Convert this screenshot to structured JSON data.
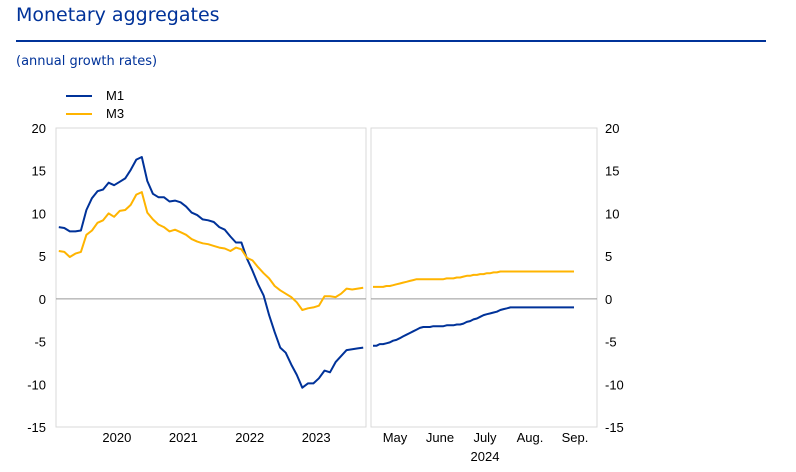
{
  "title": "Monetary aggregates",
  "subtitle": "(annual growth rates)",
  "chart_data": [
    {
      "type": "line",
      "panel": "left",
      "x_unit": "month",
      "x_tick_labels": [
        "2020",
        "2021",
        "2022",
        "2023"
      ],
      "ylim": [
        -15,
        20
      ],
      "y_ticks": [
        20,
        15,
        10,
        5,
        0,
        -5,
        -10,
        -15
      ],
      "x": [
        "2019-08",
        "2019-09",
        "2019-10",
        "2019-11",
        "2019-12",
        "2020-01",
        "2020-02",
        "2020-03",
        "2020-04",
        "2020-05",
        "2020-06",
        "2020-07",
        "2020-08",
        "2020-09",
        "2020-10",
        "2020-11",
        "2020-12",
        "2021-01",
        "2021-02",
        "2021-03",
        "2021-04",
        "2021-05",
        "2021-06",
        "2021-07",
        "2021-08",
        "2021-09",
        "2021-10",
        "2021-11",
        "2021-12",
        "2022-01",
        "2022-02",
        "2022-03",
        "2022-04",
        "2022-05",
        "2022-06",
        "2022-07",
        "2022-08",
        "2022-09",
        "2022-10",
        "2022-11",
        "2022-12",
        "2023-01",
        "2023-02",
        "2023-03",
        "2023-04",
        "2023-05",
        "2023-06",
        "2023-07",
        "2023-08",
        "2023-09",
        "2023-10",
        "2023-11",
        "2023-12",
        "2024-01",
        "2024-02",
        "2024-03"
      ],
      "series": [
        {
          "name": "M1",
          "color": "#003299",
          "values": [
            8.4,
            8.3,
            7.9,
            7.9,
            8.0,
            10.4,
            11.8,
            12.6,
            12.8,
            13.6,
            13.3,
            13.7,
            14.1,
            15.1,
            16.3,
            16.6,
            13.8,
            12.3,
            11.9,
            11.9,
            11.4,
            11.5,
            11.3,
            10.8,
            10.1,
            9.8,
            9.3,
            9.2,
            9.0,
            8.4,
            8.1,
            7.3,
            6.6,
            6.6,
            4.7,
            3.3,
            1.7,
            0.4,
            -1.9,
            -3.9,
            -5.7,
            -6.3,
            -7.7,
            -8.9,
            -10.4,
            -9.9,
            -9.9,
            -9.3,
            -8.4,
            -8.6,
            -7.4,
            -6.7,
            -6.0,
            -5.9,
            -5.8,
            -5.7
          ]
        },
        {
          "name": "M3",
          "color": "#ffb400",
          "values": [
            5.6,
            5.5,
            4.9,
            5.3,
            5.5,
            7.5,
            8.0,
            8.9,
            9.2,
            10.0,
            9.6,
            10.3,
            10.4,
            11.0,
            12.2,
            12.5,
            10.1,
            9.3,
            8.7,
            8.4,
            7.9,
            8.1,
            7.8,
            7.5,
            7.0,
            6.7,
            6.5,
            6.4,
            6.2,
            6.0,
            5.9,
            5.6,
            6.0,
            5.8,
            4.8,
            4.5,
            3.7,
            3.0,
            2.4,
            1.5,
            1.0,
            0.6,
            0.2,
            -0.4,
            -1.3,
            -1.1,
            -1.0,
            -0.8,
            0.3,
            0.3,
            0.2,
            0.6,
            1.2,
            1.1,
            1.2,
            1.3
          ]
        }
      ]
    },
    {
      "type": "line",
      "panel": "right",
      "x_unit": "week",
      "x_tick_labels": [
        "May",
        "June",
        "July",
        "Aug.",
        "Sep."
      ],
      "year_label": "2024",
      "ylim": [
        -15,
        20
      ],
      "y_ticks": [
        20,
        15,
        10,
        5,
        0,
        -5,
        -10,
        -15
      ],
      "x": [
        0,
        1,
        2,
        3,
        4,
        5,
        6,
        7,
        8,
        9,
        10,
        11,
        12,
        13,
        14,
        15,
        16,
        17,
        18,
        19,
        20,
        21,
        22,
        23,
        24,
        25,
        26,
        27,
        28,
        29,
        30,
        31,
        32,
        33,
        34,
        35,
        36,
        37,
        38,
        39,
        40,
        41,
        42,
        43,
        44,
        45,
        46,
        47,
        48,
        49,
        50,
        51,
        52,
        53,
        54,
        55,
        56,
        57,
        58,
        59,
        60
      ],
      "series": [
        {
          "name": "M1",
          "color": "#003299",
          "values": [
            -5.5,
            -5.5,
            -5.3,
            -5.3,
            -5.2,
            -5.1,
            -4.9,
            -4.8,
            -4.6,
            -4.4,
            -4.2,
            -4.0,
            -3.8,
            -3.6,
            -3.4,
            -3.3,
            -3.3,
            -3.3,
            -3.2,
            -3.2,
            -3.2,
            -3.2,
            -3.1,
            -3.1,
            -3.1,
            -3.0,
            -3.0,
            -2.9,
            -2.7,
            -2.6,
            -2.4,
            -2.3,
            -2.1,
            -1.9,
            -1.8,
            -1.7,
            -1.6,
            -1.5,
            -1.3,
            -1.2,
            -1.1,
            -1.0,
            -1.0,
            -1.0,
            -1.0,
            -1.0,
            -1.0,
            -1.0,
            -1.0,
            -1.0,
            -1.0,
            -1.0,
            -1.0,
            -1.0,
            -1.0,
            -1.0,
            -1.0,
            -1.0,
            -1.0,
            -1.0,
            -1.0
          ]
        },
        {
          "name": "M3",
          "color": "#ffb400",
          "values": [
            1.4,
            1.4,
            1.4,
            1.4,
            1.5,
            1.5,
            1.6,
            1.7,
            1.8,
            1.9,
            2.0,
            2.1,
            2.2,
            2.3,
            2.3,
            2.3,
            2.3,
            2.3,
            2.3,
            2.3,
            2.3,
            2.3,
            2.4,
            2.4,
            2.4,
            2.5,
            2.5,
            2.6,
            2.7,
            2.7,
            2.8,
            2.8,
            2.9,
            2.9,
            3.0,
            3.0,
            3.1,
            3.1,
            3.2,
            3.2,
            3.2,
            3.2,
            3.2,
            3.2,
            3.2,
            3.2,
            3.2,
            3.2,
            3.2,
            3.2,
            3.2,
            3.2,
            3.2,
            3.2,
            3.2,
            3.2,
            3.2,
            3.2,
            3.2,
            3.2,
            3.2
          ]
        }
      ]
    }
  ],
  "legend": [
    "M1",
    "M3"
  ]
}
